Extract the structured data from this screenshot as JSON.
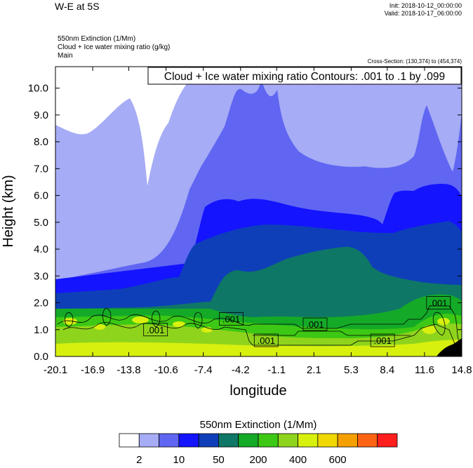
{
  "header": {
    "title": "W-E at 5S",
    "init": "Init: 2018-10-12_00:00:00",
    "valid": "Valid: 2018-10-17_06:00:00",
    "field1": "550nm Extinction   (1/Mm)",
    "field2": "Cloud + Ice water mixing ratio   (g/kg)",
    "field3": "Main",
    "cross_section": "Cross-Section: (130,374) to (454,374)"
  },
  "chart_data": {
    "type": "heatmap",
    "title": "W-E at 5S",
    "xlabel": "longitude",
    "ylabel": "Height (km)",
    "xlim": [
      -20.1,
      14.8
    ],
    "ylim": [
      0.0,
      10.8
    ],
    "x_ticks": [
      "-20.1",
      "-16.9",
      "-13.8",
      "-10.6",
      "-7.4",
      "-4.2",
      "-1.1",
      "2.1",
      "5.3",
      "8.4",
      "11.6",
      "14.8"
    ],
    "y_ticks": [
      "0.0",
      "1.0",
      "2.0",
      "3.0",
      "4.0",
      "5.0",
      "6.0",
      "7.0",
      "8.0",
      "9.0",
      "10.0"
    ],
    "contour_info": "Cloud + Ice water mixing ratio Contours: .001 to .1 by .099",
    "contour_labels": [
      {
        "text": ".001",
        "x": -11.5,
        "y": 1.0
      },
      {
        "text": ".001",
        "x": -5.0,
        "y": 1.4
      },
      {
        "text": ".001",
        "x": -2.0,
        "y": 0.6
      },
      {
        "text": ".001",
        "x": 2.2,
        "y": 1.2
      },
      {
        "text": ".001",
        "x": 8.0,
        "y": 0.6
      },
      {
        "text": ".001",
        "x": 12.8,
        "y": 2.0
      }
    ],
    "colorbar": {
      "title": "550nm Extinction  (1/Mm)",
      "colors": [
        "#ffffff",
        "#a6acf5",
        "#6066f2",
        "#1414ff",
        "#0e3fb8",
        "#0f7766",
        "#14aa28",
        "#3cc814",
        "#8fd41c",
        "#d8f00e",
        "#f0d800",
        "#f5a000",
        "#ff6414",
        "#ff1e1e"
      ],
      "tick_labels": [
        "2",
        "10",
        "50",
        "200",
        "400",
        "600"
      ]
    }
  }
}
